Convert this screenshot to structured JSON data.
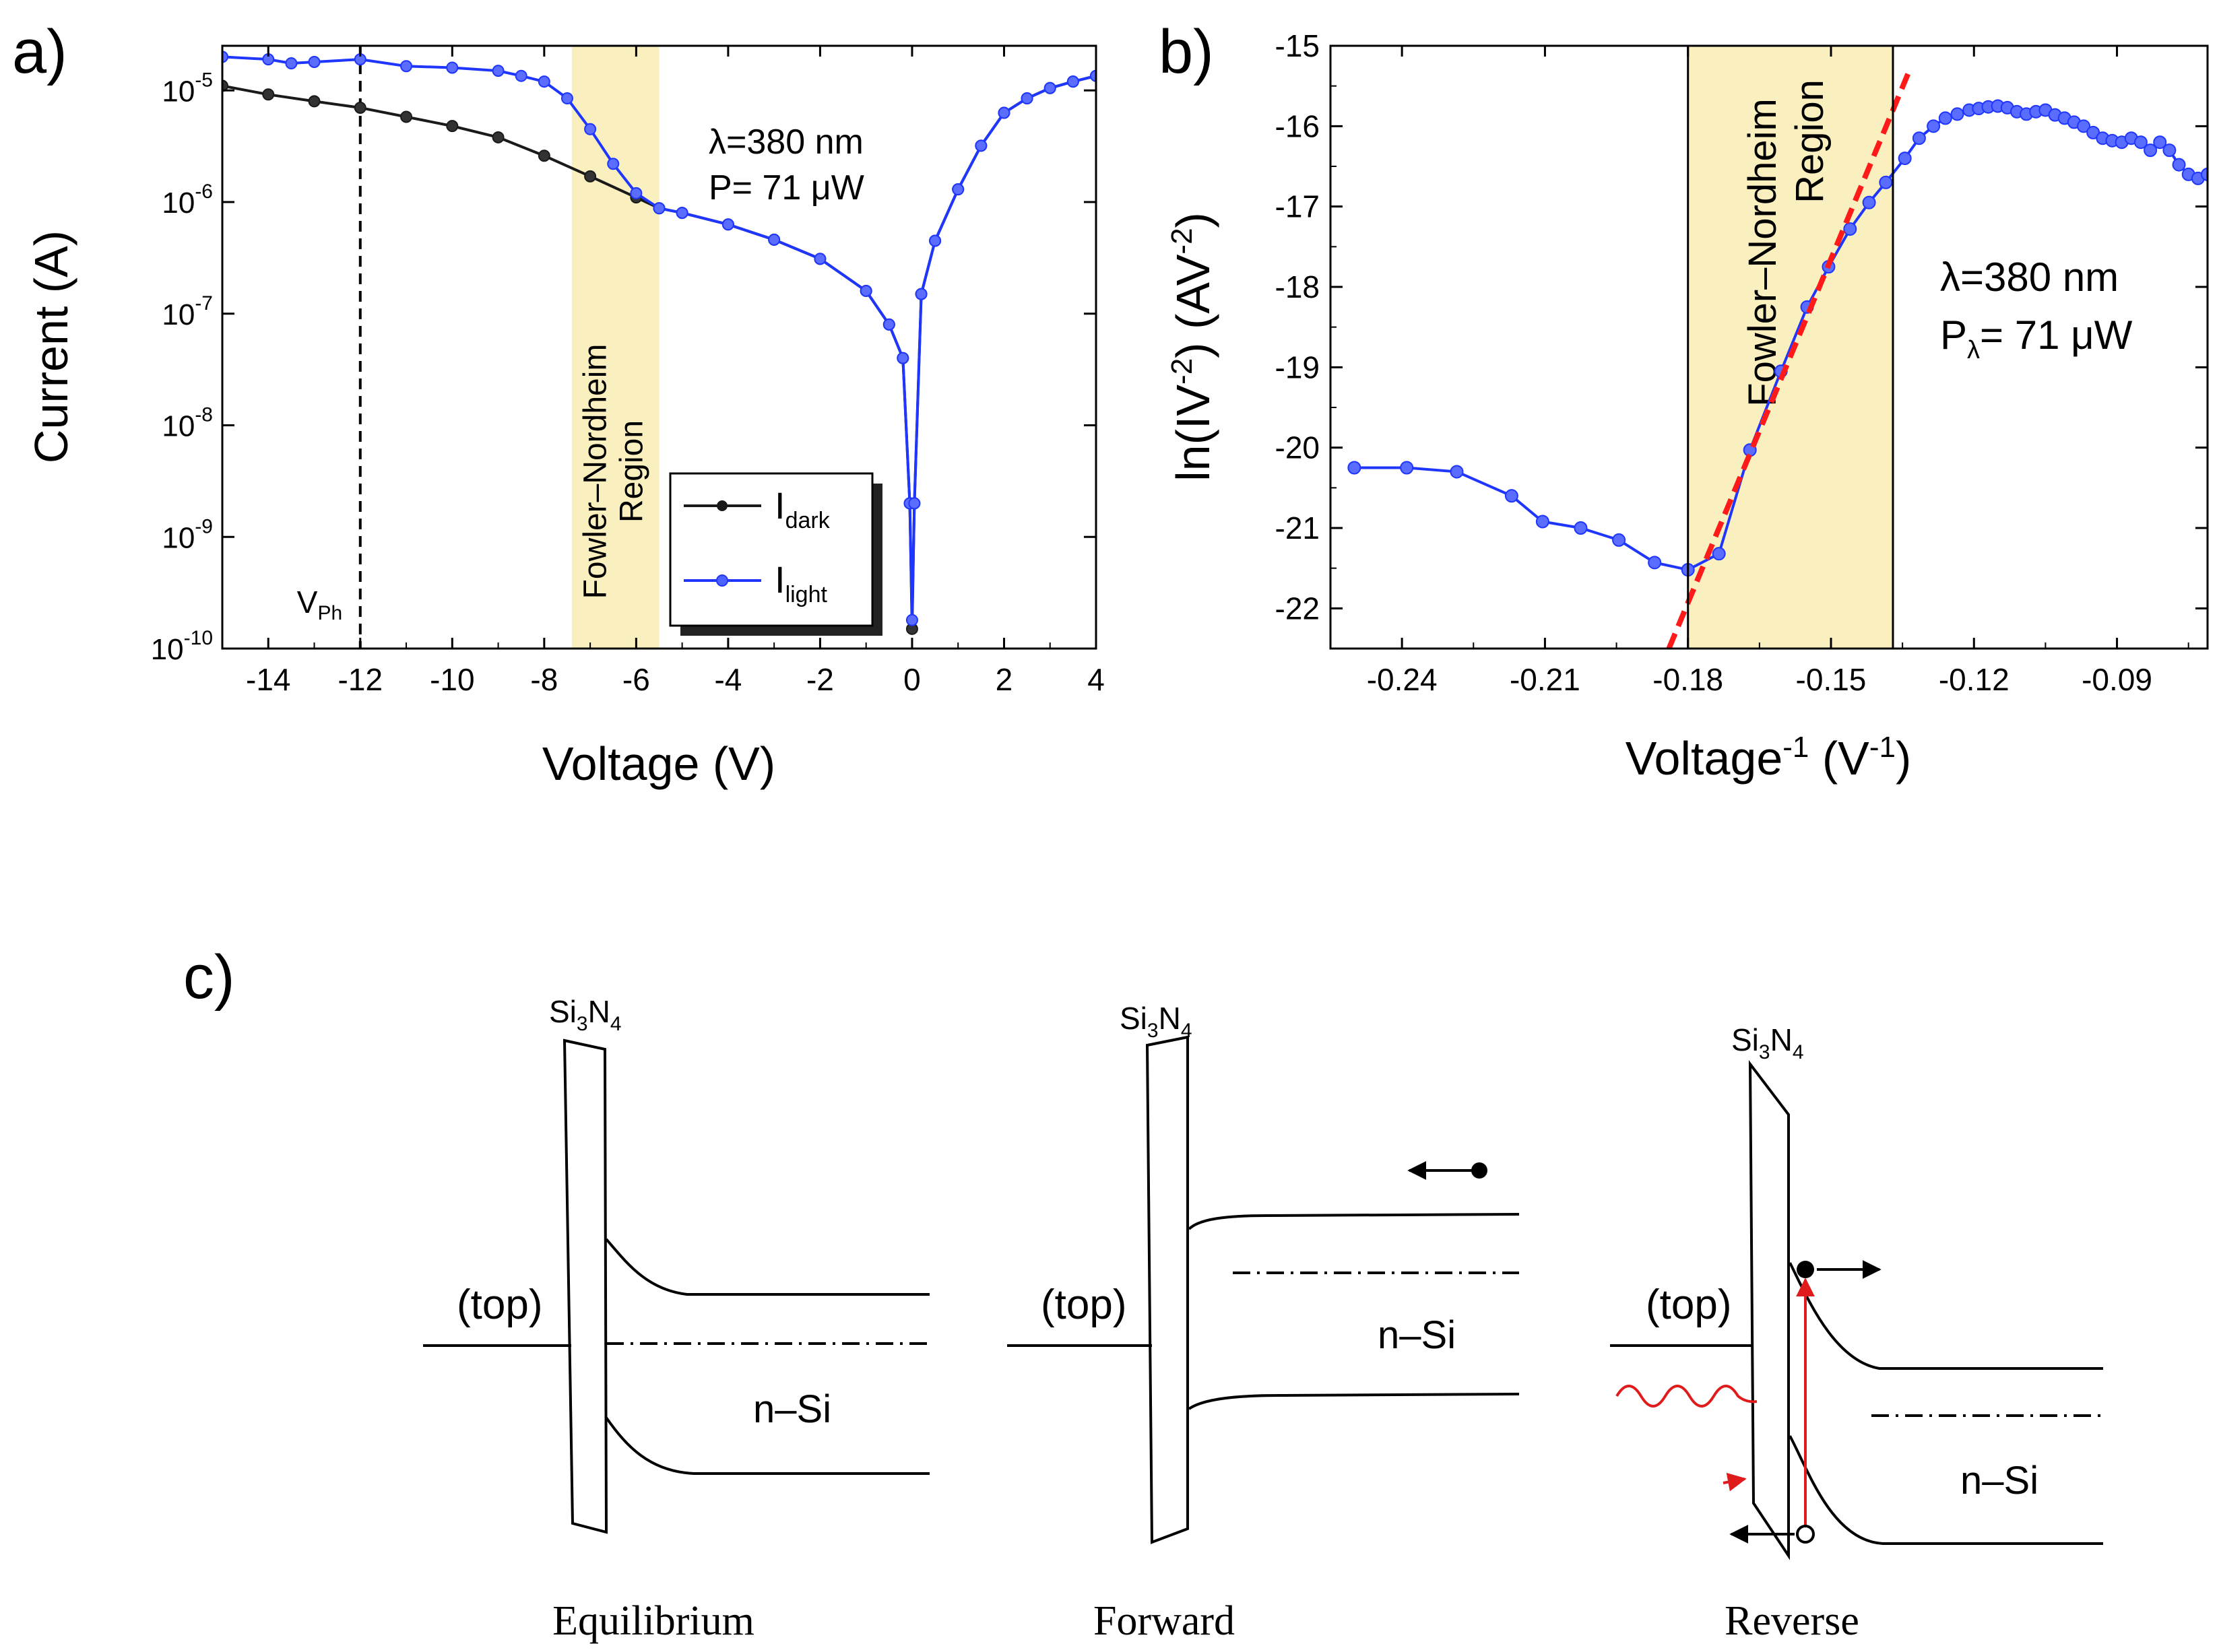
{
  "chart_data": [
    {
      "type": "line",
      "panel_label": "a)",
      "xlabel": "Voltage (V)",
      "ylabel": "Current (A)",
      "y_scale": "log",
      "xlim": [
        -15,
        4
      ],
      "ylim_exp": [
        -10,
        -4.6
      ],
      "x_ticks": [
        -14,
        -12,
        -10,
        -8,
        -6,
        -4,
        -2,
        0,
        2,
        4
      ],
      "y_ticks_exp": [
        -10,
        -9,
        -8,
        -7,
        -6,
        -5
      ],
      "y_tick_base": "10",
      "annotation_lines": [
        "λ=380 nm",
        "P= 71 μW"
      ],
      "vline": {
        "x": -12,
        "label_main": "V",
        "label_sub": "Ph"
      },
      "shaded_region": {
        "x_range": [
          -7.4,
          -5.5
        ],
        "label_lines": [
          "Fowler–Nordheim",
          "Region"
        ],
        "color": "#faefbe"
      },
      "legend_position": "bottom-right",
      "series": [
        {
          "name": "I",
          "name_sub": "dark",
          "color": "#1a1a1a",
          "points": [
            [
              -15,
              1.1e-05
            ],
            [
              -14,
              9.2e-06
            ],
            [
              -13,
              8e-06
            ],
            [
              -12,
              7e-06
            ],
            [
              -11,
              5.8e-06
            ],
            [
              -10,
              4.8e-06
            ],
            [
              -9,
              3.8e-06
            ],
            [
              -8,
              2.6e-06
            ],
            [
              -7,
              1.7e-06
            ],
            [
              -6,
              1.1e-06
            ],
            [
              -5.5,
              8.8e-07
            ],
            [
              -5,
              8e-07
            ],
            [
              -4,
              6.3e-07
            ],
            [
              -3,
              4.6e-07
            ],
            [
              -2,
              3.1e-07
            ],
            [
              -1,
              1.6e-07
            ],
            [
              -0.5,
              8e-08
            ],
            [
              -0.2,
              4e-08
            ],
            [
              -0.05,
              2e-09
            ],
            [
              0,
              1.5e-10
            ],
            [
              0.05,
              2e-09
            ],
            [
              0.2,
              1.5e-07
            ],
            [
              0.5,
              4.5e-07
            ],
            [
              1,
              1.3e-06
            ],
            [
              1.5,
              3.2e-06
            ],
            [
              2,
              6.3e-06
            ],
            [
              2.5,
              8.5e-06
            ],
            [
              3,
              1.05e-05
            ],
            [
              3.5,
              1.2e-05
            ],
            [
              4,
              1.35e-05
            ]
          ]
        },
        {
          "name": "I",
          "name_sub": "light",
          "color": "#1f36ff",
          "points": [
            [
              -15,
              2e-05
            ],
            [
              -14,
              1.9e-05
            ],
            [
              -13.5,
              1.75e-05
            ],
            [
              -13,
              1.8e-05
            ],
            [
              -12,
              1.9e-05
            ],
            [
              -11,
              1.65e-05
            ],
            [
              -10,
              1.6e-05
            ],
            [
              -9,
              1.5e-05
            ],
            [
              -8.5,
              1.35e-05
            ],
            [
              -8,
              1.2e-05
            ],
            [
              -7.5,
              8.5e-06
            ],
            [
              -7,
              4.5e-06
            ],
            [
              -6.5,
              2.2e-06
            ],
            [
              -6,
              1.2e-06
            ],
            [
              -5.5,
              8.8e-07
            ],
            [
              -5,
              8e-07
            ],
            [
              -4,
              6.3e-07
            ],
            [
              -3,
              4.6e-07
            ],
            [
              -2,
              3.1e-07
            ],
            [
              -1,
              1.6e-07
            ],
            [
              -0.5,
              8e-08
            ],
            [
              -0.2,
              4e-08
            ],
            [
              -0.05,
              2e-09
            ],
            [
              0,
              1.8e-10
            ],
            [
              0.05,
              2e-09
            ],
            [
              0.2,
              1.5e-07
            ],
            [
              0.5,
              4.5e-07
            ],
            [
              1,
              1.3e-06
            ],
            [
              1.5,
              3.2e-06
            ],
            [
              2,
              6.3e-06
            ],
            [
              2.5,
              8.5e-06
            ],
            [
              3,
              1.05e-05
            ],
            [
              3.5,
              1.2e-05
            ],
            [
              4,
              1.35e-05
            ]
          ]
        }
      ]
    },
    {
      "type": "line",
      "panel_label": "b)",
      "xlabel": "Voltage",
      "xlabel_sup": "-1",
      "xlabel_tail": " (V",
      "xlabel_tail_sup": "-1",
      "xlabel_end": ")",
      "ylabel_parts": [
        "ln(IV",
        "-2",
        ") (AV",
        "-2",
        ")"
      ],
      "xlim": [
        -0.255,
        -0.071
      ],
      "ylim": [
        -22.5,
        -15
      ],
      "x_ticks": [
        -0.24,
        -0.21,
        -0.18,
        -0.15,
        -0.12,
        -0.09
      ],
      "x_tick_labels": [
        "-0.24",
        "-0.21",
        "-0.18",
        "-0.15",
        "-0.12",
        "-0.09"
      ],
      "y_ticks": [
        -22,
        -21,
        -20,
        -19,
        -18,
        -17,
        -16,
        -15
      ],
      "annotation_lines": [
        "λ=380 nm"
      ],
      "annotation_p": {
        "main": "P",
        "sub": "λ",
        "rest": "= 71 μW"
      },
      "shaded_region": {
        "x_range": [
          -0.18,
          -0.137
        ],
        "label_lines": [
          "Fowler–Nordheim",
          "Region"
        ],
        "color": "#faefbe"
      },
      "fit_line": {
        "x": [
          -0.184,
          -0.1335
        ],
        "y": [
          -22.5,
          -15.3
        ],
        "color": "#ff1a1a",
        "style": "dashed"
      },
      "series": [
        {
          "name": "ln(IV^-2)",
          "color": "#1f36ff",
          "points": [
            [
              -0.25,
              -20.25
            ],
            [
              -0.239,
              -20.25
            ],
            [
              -0.2285,
              -20.3
            ],
            [
              -0.217,
              -20.6
            ],
            [
              -0.2105,
              -20.92
            ],
            [
              -0.2025,
              -21.0
            ],
            [
              -0.1945,
              -21.15
            ],
            [
              -0.187,
              -21.43
            ],
            [
              -0.18,
              -21.52
            ],
            [
              -0.1735,
              -21.32
            ],
            [
              -0.167,
              -20.03
            ],
            [
              -0.1605,
              -19.05
            ],
            [
              -0.155,
              -18.25
            ],
            [
              -0.1505,
              -17.75
            ],
            [
              -0.146,
              -17.28
            ],
            [
              -0.142,
              -16.95
            ],
            [
              -0.1385,
              -16.7
            ],
            [
              -0.1345,
              -16.4
            ],
            [
              -0.1315,
              -16.15
            ],
            [
              -0.1285,
              -16.0
            ],
            [
              -0.126,
              -15.9
            ],
            [
              -0.1235,
              -15.85
            ],
            [
              -0.121,
              -15.8
            ],
            [
              -0.119,
              -15.78
            ],
            [
              -0.117,
              -15.76
            ],
            [
              -0.115,
              -15.75
            ],
            [
              -0.113,
              -15.77
            ],
            [
              -0.111,
              -15.82
            ],
            [
              -0.109,
              -15.85
            ],
            [
              -0.107,
              -15.82
            ],
            [
              -0.105,
              -15.8
            ],
            [
              -0.103,
              -15.86
            ],
            [
              -0.101,
              -15.9
            ],
            [
              -0.099,
              -15.95
            ],
            [
              -0.097,
              -16.0
            ],
            [
              -0.095,
              -16.08
            ],
            [
              -0.093,
              -16.15
            ],
            [
              -0.091,
              -16.18
            ],
            [
              -0.089,
              -16.2
            ],
            [
              -0.087,
              -16.15
            ],
            [
              -0.085,
              -16.2
            ],
            [
              -0.083,
              -16.3
            ],
            [
              -0.081,
              -16.2
            ],
            [
              -0.079,
              -16.3
            ],
            [
              -0.077,
              -16.48
            ],
            [
              -0.075,
              -16.6
            ],
            [
              -0.073,
              -16.65
            ],
            [
              -0.071,
              -16.6
            ]
          ]
        }
      ]
    }
  ],
  "diagram": {
    "panel_label": "c)",
    "material": {
      "main": "Si",
      "sub1": "3",
      "mid": "N",
      "sub2": "4"
    },
    "top_label": "(top)",
    "semiconductor_label": "n–Si",
    "titles": [
      "Equilibrium",
      "Forward",
      "Reverse"
    ]
  }
}
